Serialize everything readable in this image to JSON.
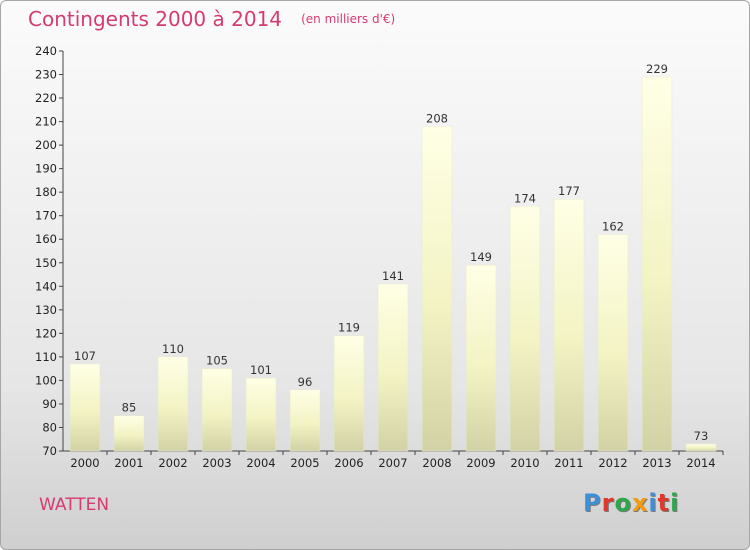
{
  "title": "Contingents 2000 à 2014",
  "unit": "(en milliers d'€)",
  "town": "WATTEN",
  "brand": {
    "letters": [
      "P",
      "r",
      "o",
      "x",
      "i",
      "t",
      "i"
    ],
    "colors": [
      "#3d8fd6",
      "#e0382b",
      "#2ba84a",
      "#f39c12",
      "#3d8fd6",
      "#e0382b",
      "#2ba84a"
    ]
  },
  "chart_data": {
    "type": "bar",
    "categories": [
      "2000",
      "2001",
      "2002",
      "2003",
      "2004",
      "2005",
      "2006",
      "2007",
      "2008",
      "2009",
      "2010",
      "2011",
      "2012",
      "2013",
      "2014"
    ],
    "values": [
      107,
      85,
      110,
      105,
      101,
      96,
      119,
      141,
      208,
      149,
      174,
      177,
      162,
      229,
      73
    ],
    "title": "Contingents 2000 à 2014",
    "xlabel": "",
    "ylabel": "",
    "ylim": [
      70,
      240
    ],
    "yticks": [
      70,
      80,
      90,
      100,
      110,
      120,
      130,
      140,
      150,
      160,
      170,
      180,
      190,
      200,
      210,
      220,
      230,
      240
    ],
    "grid": false,
    "bar_color": "#f6f6cc",
    "data_labels": true
  }
}
